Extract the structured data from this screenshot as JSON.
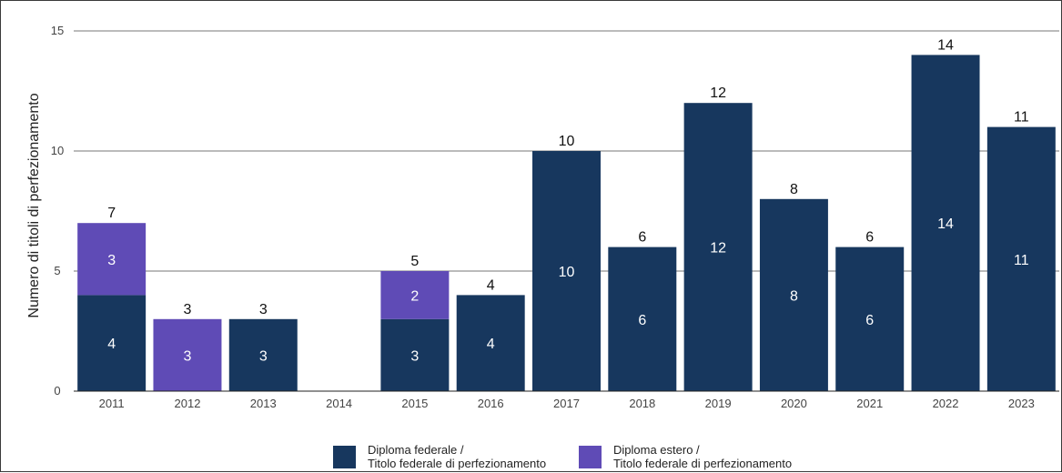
{
  "chart_data": {
    "type": "bar",
    "stacked": true,
    "title": "",
    "xlabel": "",
    "ylabel": "Numero di titoli di perfezionamento",
    "ylim": [
      0,
      15
    ],
    "yticks": [
      0,
      5,
      10,
      15
    ],
    "grid": true,
    "legend_position": "bottom-center",
    "categories": [
      "2011",
      "2012",
      "2013",
      "2014",
      "2015",
      "2016",
      "2017",
      "2018",
      "2019",
      "2020",
      "2021",
      "2022",
      "2023"
    ],
    "series": [
      {
        "name": "Diploma federale / Titolo federale di perfezionamento",
        "legend_lines": [
          "Diploma federale /",
          "Titolo federale di perfezionamento"
        ],
        "color": "#17375e",
        "values": [
          4,
          0,
          3,
          0,
          3,
          4,
          10,
          6,
          12,
          8,
          6,
          14,
          11
        ]
      },
      {
        "name": "Diploma estero / Titolo federale di perfezionamento",
        "legend_lines": [
          "Diploma estero /",
          "Titolo federale di perfezionamento"
        ],
        "color": "#5f4bb6",
        "values": [
          3,
          3,
          0,
          0,
          2,
          0,
          0,
          0,
          0,
          0,
          0,
          0,
          0
        ]
      }
    ],
    "totals": [
      7,
      3,
      3,
      0,
      5,
      4,
      10,
      6,
      12,
      8,
      6,
      14,
      11
    ]
  }
}
